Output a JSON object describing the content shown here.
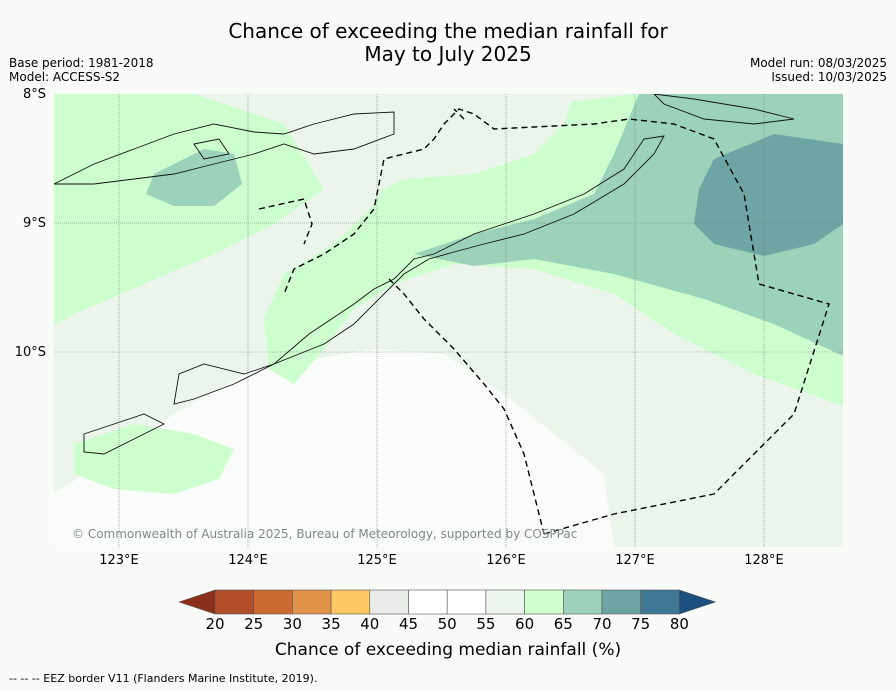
{
  "header": {
    "title_line1": "Chance of exceeding the median rainfall for",
    "title_line2": "May to July 2025",
    "base_period": "Base period: 1981-2018",
    "model": "Model: ACCESS-S2",
    "model_run": "Model run: 08/03/2025",
    "issued": "Issued: 10/03/2025"
  },
  "map": {
    "lat_labels": [
      "8°S",
      "9°S",
      "10°S"
    ],
    "lon_labels": [
      "123°E",
      "124°E",
      "125°E",
      "126°E",
      "127°E",
      "128°E"
    ],
    "credit": "© Commonwealth of Australia 2025, Bureau of Meteorology, supported by COSPPac"
  },
  "colorbar": {
    "title": "Chance of exceeding median rainfall (%)",
    "ticks": [
      "20",
      "25",
      "30",
      "35",
      "40",
      "45",
      "50",
      "55",
      "60",
      "65",
      "70",
      "75",
      "80"
    ],
    "colors": [
      "#8c2f1a",
      "#b44d2a",
      "#cc6a33",
      "#e0944a",
      "#fec864",
      "#e9ebe8",
      "#ffffff",
      "#ffffff",
      "#ebf5eb",
      "#cdfecd",
      "#9bd2b9",
      "#6da5a5",
      "#3e7895",
      "#1a4f80"
    ]
  },
  "footer": {
    "eez_note": "--  --  -- EEZ border V11 (Flanders Marine Institute, 2019)."
  }
}
